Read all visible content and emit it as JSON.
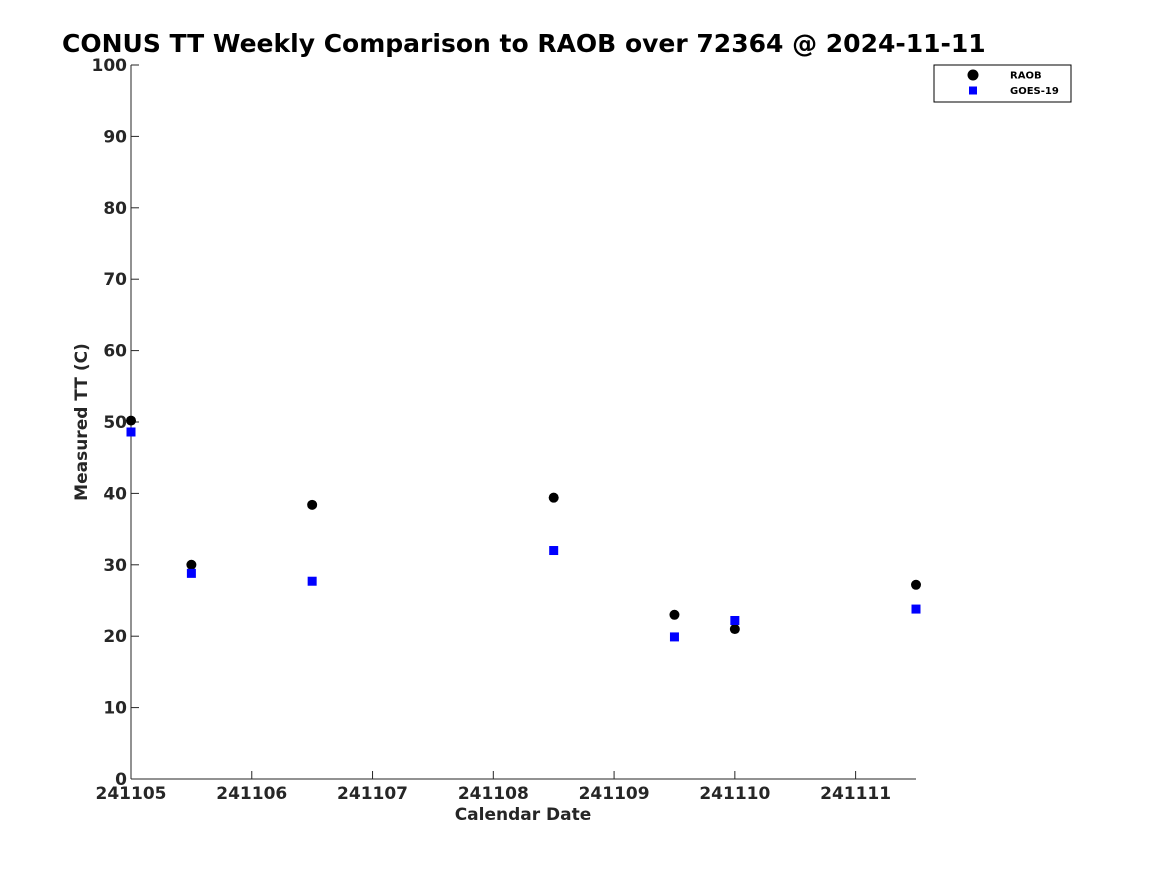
{
  "chart_data": {
    "type": "scatter",
    "title": "CONUS TT Weekly Comparison to RAOB over 72364 @ 2024-11-11",
    "xlabel": "Calendar Date",
    "ylabel": "Measured TT (C)",
    "xlim": [
      "2024-11-05 00:00",
      "2024-11-11 12:00"
    ],
    "ylim": [
      0,
      100
    ],
    "x_ticks": [
      "2024-11-05",
      "2024-11-06",
      "2024-11-07",
      "2024-11-08",
      "2024-11-09",
      "2024-11-10",
      "2024-11-11"
    ],
    "x_tick_labels": [
      "241105",
      "241106",
      "241107",
      "241108",
      "241109",
      "241110",
      "241111"
    ],
    "y_ticks": [
      0,
      10,
      20,
      30,
      40,
      50,
      60,
      70,
      80,
      90,
      100
    ],
    "y_tick_labels": [
      "0",
      "10",
      "20",
      "30",
      "40",
      "50",
      "60",
      "70",
      "80",
      "90",
      "100"
    ],
    "grid": false,
    "legend_position": "top-right",
    "series": [
      {
        "name": "RAOB",
        "marker": "circle",
        "color": "#000000",
        "x": [
          "2024-11-05 00:00",
          "2024-11-05 12:00",
          "2024-11-06 12:00",
          "2024-11-08 12:00",
          "2024-11-09 12:00",
          "2024-11-10 00:00",
          "2024-11-11 12:00"
        ],
        "y": [
          50.2,
          30.0,
          38.4,
          39.4,
          23.0,
          21.0,
          27.2
        ]
      },
      {
        "name": "GOES-19",
        "marker": "square",
        "color": "#0000ff",
        "x": [
          "2024-11-05 00:00",
          "2024-11-05 12:00",
          "2024-11-06 12:00",
          "2024-11-08 12:00",
          "2024-11-09 12:00",
          "2024-11-10 00:00",
          "2024-11-11 12:00"
        ],
        "y": [
          48.6,
          28.8,
          27.7,
          32.0,
          19.9,
          22.2,
          23.8
        ]
      }
    ]
  }
}
